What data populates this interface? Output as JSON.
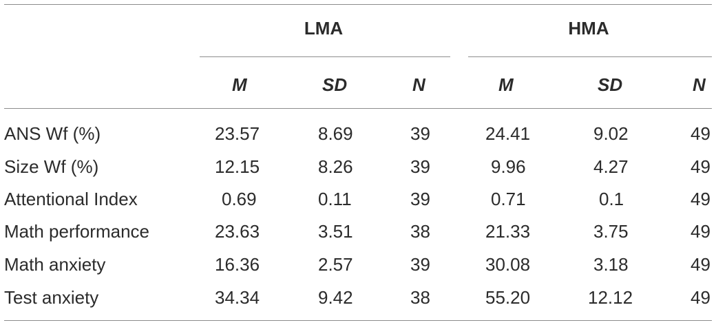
{
  "table": {
    "groups": [
      {
        "label": "LMA"
      },
      {
        "label": "HMA"
      }
    ],
    "subheaders": [
      "M",
      "SD",
      "N",
      "M",
      "SD",
      "N"
    ],
    "rows": [
      {
        "label": "ANS Wf (%)",
        "values": [
          "23.57",
          "8.69",
          "39",
          "24.41",
          "9.02",
          "49"
        ]
      },
      {
        "label": "Size Wf (%)",
        "values": [
          "12.15",
          "8.26",
          "39",
          "9.96",
          "4.27",
          "49"
        ]
      },
      {
        "label": "Attentional Index",
        "values": [
          "0.69",
          "0.11",
          "39",
          "0.71",
          "0.1",
          "49"
        ]
      },
      {
        "label": "Math performance",
        "values": [
          "23.63",
          "3.51",
          "38",
          "21.33",
          "3.75",
          "49"
        ]
      },
      {
        "label": "Math anxiety",
        "values": [
          "16.36",
          "2.57",
          "39",
          "30.08",
          "3.18",
          "49"
        ]
      },
      {
        "label": "Test anxiety",
        "values": [
          "34.34",
          "9.42",
          "38",
          "55.20",
          "12.12",
          "49"
        ]
      }
    ]
  }
}
